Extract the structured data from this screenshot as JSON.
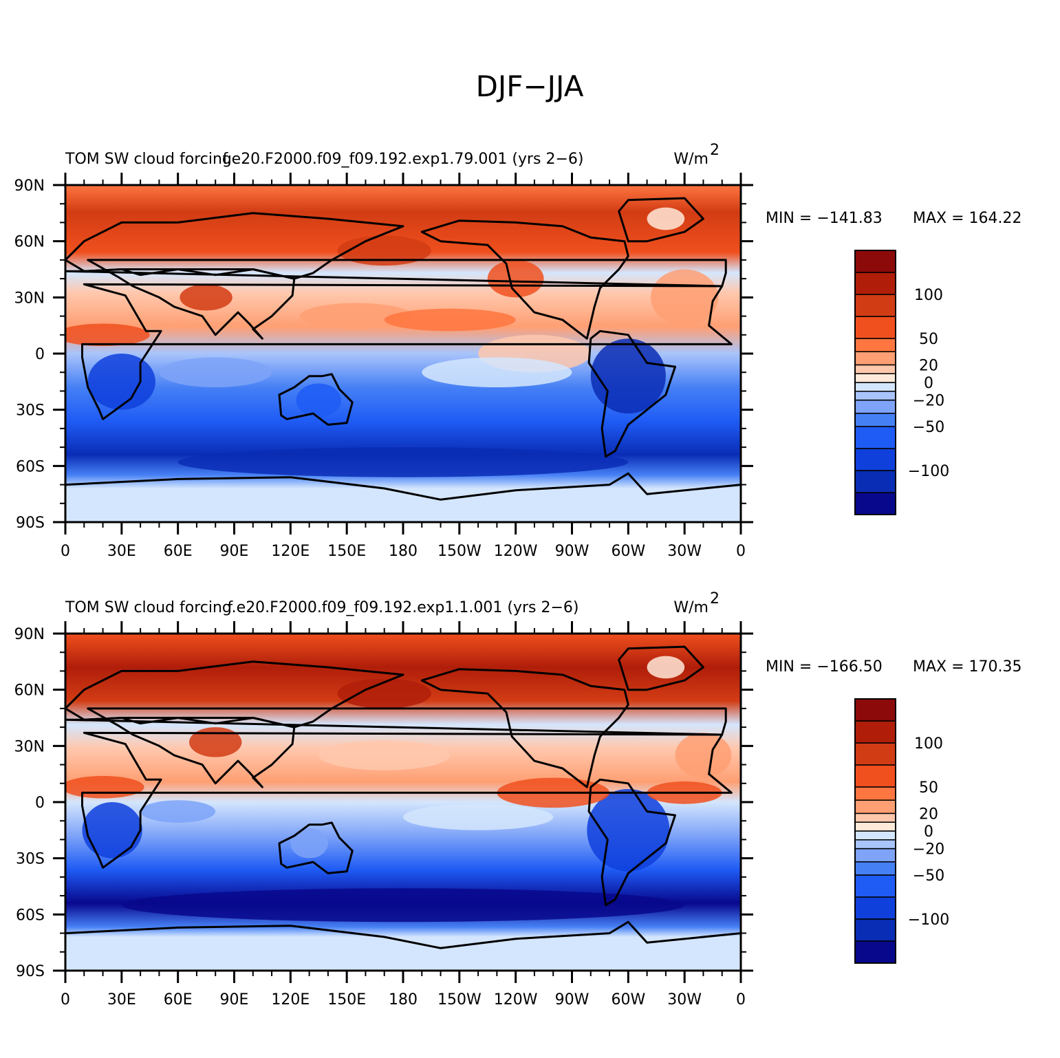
{
  "figure_title": "DJF−JJA",
  "colors": {
    "levels": [
      "#08088c",
      "#0a2db5",
      "#0f40dc",
      "#1f5cf5",
      "#4680f5",
      "#7ea3f8",
      "#a9c4fb",
      "#d4e6fd",
      "#ffe9d9",
      "#ffc8ad",
      "#ff9f73",
      "#ff7640",
      "#f0501e",
      "#d23c14",
      "#b01e0a",
      "#8c0a0a"
    ],
    "coast": "#000000"
  },
  "colorbar_labels": [
    "100",
    "50",
    "20",
    "0",
    "−20",
    "−50",
    "−100"
  ],
  "x_ticks": [
    "0",
    "30E",
    "60E",
    "90E",
    "120E",
    "150E",
    "180",
    "150W",
    "120W",
    "90W",
    "60W",
    "30W",
    "0"
  ],
  "y_ticks": [
    "90N",
    "60N",
    "30N",
    "0",
    "30S",
    "60S",
    "90S"
  ],
  "panels": [
    {
      "left_title": "TOM SW cloud forcing",
      "center_title": "f.e20.F2000.f09_f09.192.exp1.79.001 (yrs 2−6)",
      "units": "W/m",
      "units_exp": "2",
      "min_label": "MIN = −141.83",
      "max_label": "MAX = 164.22"
    },
    {
      "left_title": "TOM SW cloud forcing",
      "center_title": "f.e20.F2000.f09_f09.192.exp1.1.001 (yrs 2−6)",
      "units": "W/m",
      "units_exp": "2",
      "min_label": "MIN = −166.50",
      "max_label": "MAX = 170.35"
    }
  ]
}
